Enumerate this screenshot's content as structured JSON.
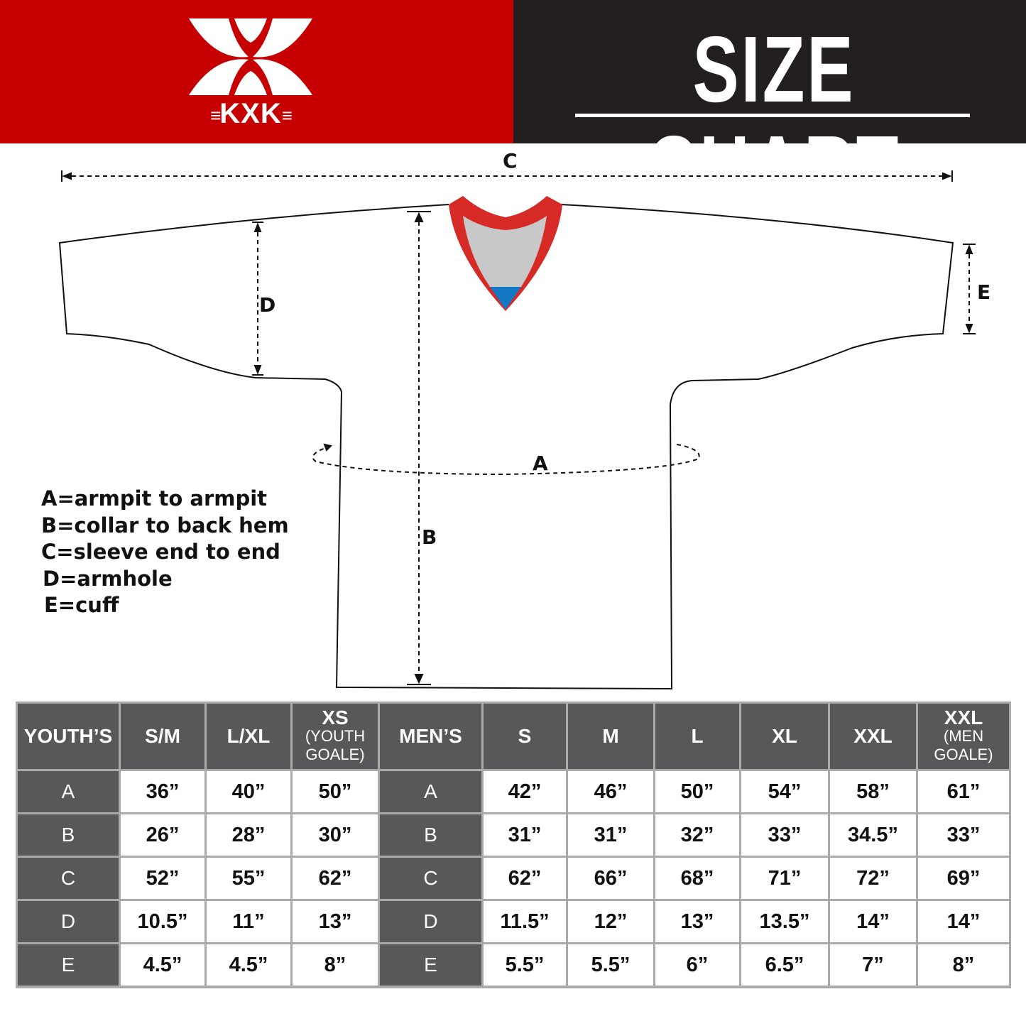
{
  "brand": {
    "logo_text": "KXK",
    "colors": {
      "red": "#c60000",
      "dark": "#231f20",
      "table_header": "#58585a",
      "collar_red": "#d62a27",
      "collar_blue": "#1479c4"
    }
  },
  "header": {
    "title": "SIZE CHART"
  },
  "diagram": {
    "labels": {
      "a": "A",
      "b": "B",
      "c": "C",
      "d": "D",
      "e": "E"
    },
    "legend": [
      "A=armpit to armpit",
      "B=collar to back hem",
      "C=sleeve end to end",
      "D=armhole",
      "E=cuff"
    ]
  },
  "table": {
    "youth_header": "YOUTH’S",
    "men_header": "MEN’S",
    "youth_sizes": [
      {
        "label": "S/M",
        "sub": ""
      },
      {
        "label": "L/XL",
        "sub": ""
      },
      {
        "label": "XS",
        "sub": "(YOUTH GOALE)"
      }
    ],
    "men_sizes": [
      {
        "label": "S",
        "sub": ""
      },
      {
        "label": "M",
        "sub": ""
      },
      {
        "label": "L",
        "sub": ""
      },
      {
        "label": "XL",
        "sub": ""
      },
      {
        "label": "XXL",
        "sub": ""
      },
      {
        "label": "XXL",
        "sub": "(MEN GOALE)"
      }
    ],
    "rows": [
      {
        "label": "A",
        "youth": [
          "36”",
          "40”",
          "50”"
        ],
        "men": [
          "42”",
          "46”",
          "50”",
          "54”",
          "58”",
          "61”"
        ]
      },
      {
        "label": "B",
        "youth": [
          "26”",
          "28”",
          "30”"
        ],
        "men": [
          "31”",
          "31”",
          "32”",
          "33”",
          "34.5”",
          "33”"
        ]
      },
      {
        "label": "C",
        "youth": [
          "52”",
          "55”",
          "62”"
        ],
        "men": [
          "62”",
          "66”",
          "68”",
          "71”",
          "72”",
          "69”"
        ]
      },
      {
        "label": "D",
        "youth": [
          "10.5”",
          "11”",
          "13”"
        ],
        "men": [
          "11.5”",
          "12”",
          "13”",
          "13.5”",
          "14”",
          "14”"
        ]
      },
      {
        "label": "E",
        "youth": [
          "4.5”",
          "4.5”",
          "8”"
        ],
        "men": [
          "5.5”",
          "5.5”",
          "6”",
          "6.5”",
          "7”",
          "8”"
        ]
      }
    ]
  }
}
